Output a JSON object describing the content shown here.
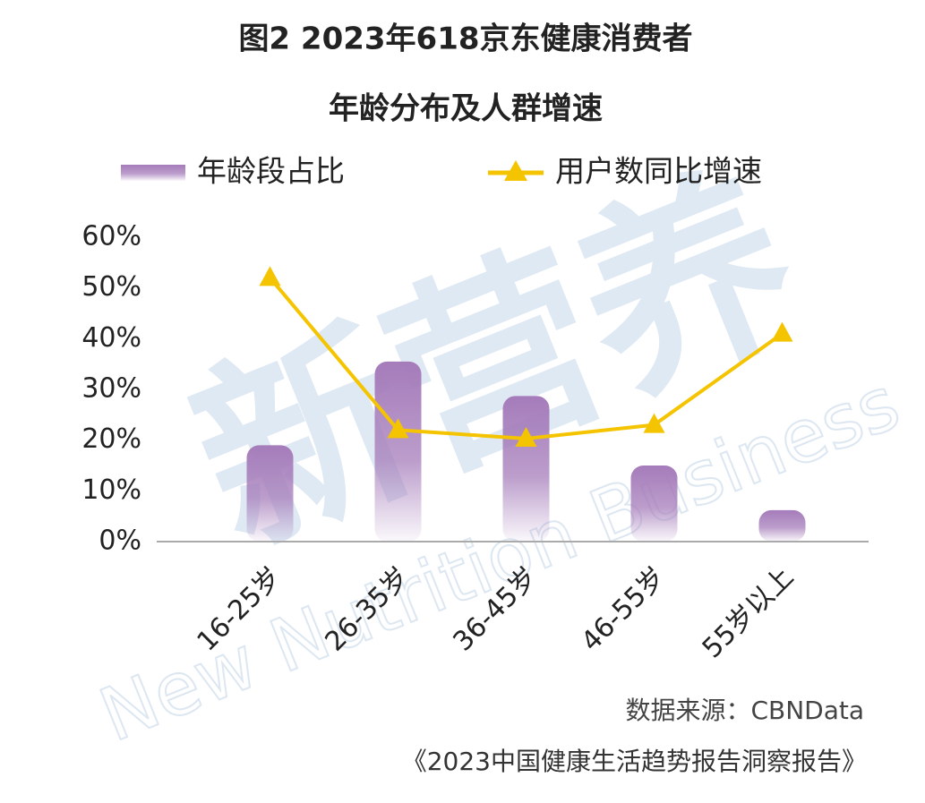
{
  "chart_data": {
    "type": "bar_line",
    "title": [
      "图2 2023年618京东健康消费者",
      "年龄分布及人群增速"
    ],
    "categories": [
      "16-25岁",
      "26-35岁",
      "36-45岁",
      "46-55岁",
      "55岁以上"
    ],
    "series": [
      {
        "name": "年龄段占比",
        "type": "bar",
        "color": "#a57cba",
        "values": [
          19,
          35.5,
          28.7,
          15,
          6.2
        ]
      },
      {
        "name": "用户数同比增速",
        "type": "line",
        "color": "#f5c400",
        "values": [
          52,
          22,
          20.3,
          23,
          41
        ]
      }
    ],
    "ylim": [
      0,
      60
    ],
    "yticks": [
      {
        "value": 0,
        "label": "0%"
      },
      {
        "value": 10,
        "label": "10%"
      },
      {
        "value": 20,
        "label": "20%"
      },
      {
        "value": 30,
        "label": "30%"
      },
      {
        "value": 40,
        "label": "40%"
      },
      {
        "value": 50,
        "label": "50%"
      },
      {
        "value": 60,
        "label": "60%"
      }
    ],
    "watermark": "新营养",
    "watermark_en": "New Nutrition Business",
    "source": "数据来源：CBNData",
    "report": "《2023中国健康生活趋势报告洞察报告》"
  }
}
